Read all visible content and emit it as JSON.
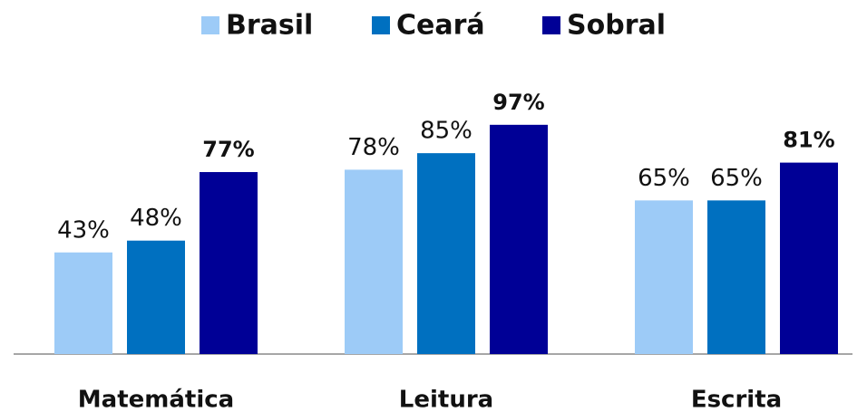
{
  "chart_data": {
    "type": "bar",
    "categories": [
      "Matemática",
      "Leitura",
      "Escrita"
    ],
    "series": [
      {
        "name": "Brasil",
        "color": "#9dcbf7",
        "values": [
          43,
          78,
          65
        ],
        "value_labels": [
          "43%",
          "78%",
          "65%"
        ],
        "label_bold": false
      },
      {
        "name": "Ceará",
        "color": "#0070c0",
        "values": [
          48,
          85,
          65
        ],
        "value_labels": [
          "48%",
          "85%",
          "65%"
        ],
        "label_bold": false
      },
      {
        "name": "Sobral",
        "color": "#000096",
        "values": [
          77,
          97,
          81
        ],
        "value_labels": [
          "77%",
          "97%",
          "81%"
        ],
        "label_bold": true
      }
    ]
  }
}
